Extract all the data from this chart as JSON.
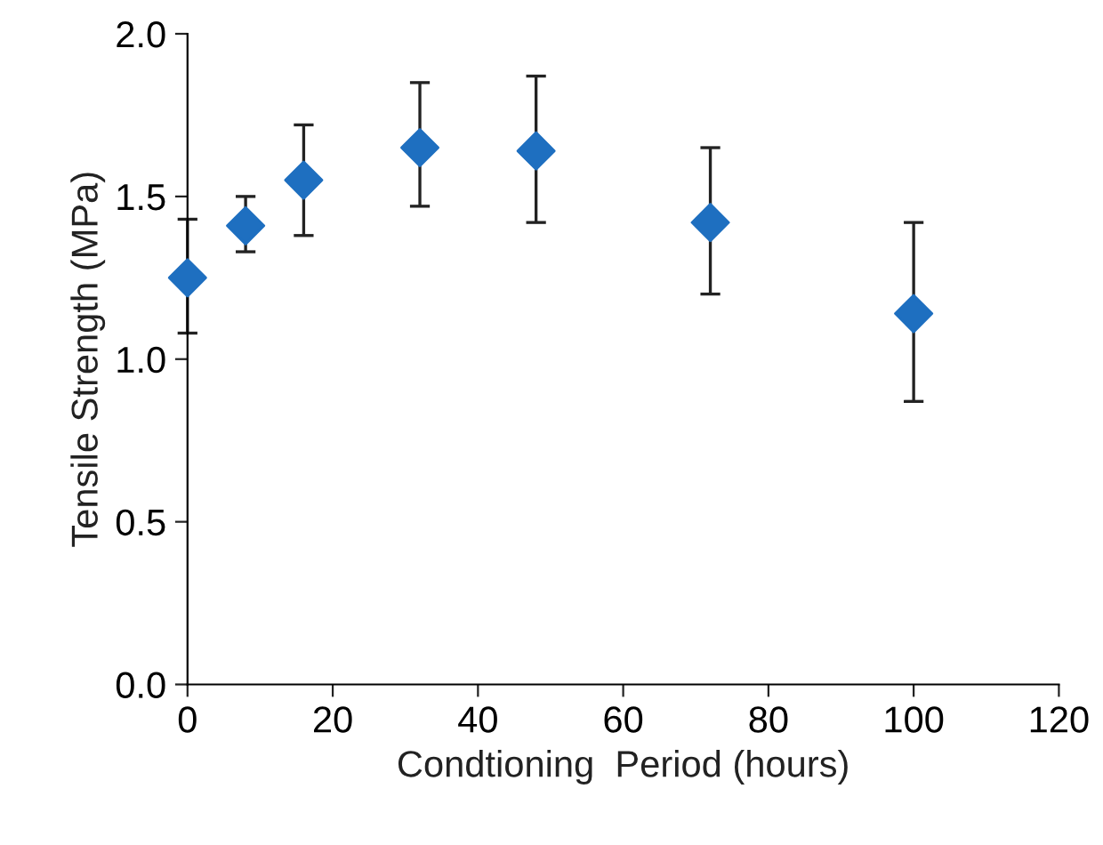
{
  "chart_data": {
    "type": "scatter",
    "xlabel": "Condtioning  Period (hours)",
    "ylabel": "Tensile Strength (MPa)",
    "x": [
      0,
      8,
      16,
      32,
      48,
      72,
      100
    ],
    "series": [
      {
        "color": "#1e6fc0",
        "values": [
          1.25,
          1.41,
          1.55,
          1.65,
          1.64,
          1.42,
          1.14
        ],
        "errors": [
          [
            1.08,
            1.43
          ],
          [
            1.33,
            1.5
          ],
          [
            1.38,
            1.72
          ],
          [
            1.47,
            1.85
          ],
          [
            1.42,
            1.87
          ],
          [
            1.2,
            1.65
          ],
          [
            0.87,
            1.42
          ]
        ]
      }
    ],
    "marker": "diamond",
    "grid": false,
    "legend": false,
    "xlim": [
      0,
      120
    ],
    "xticks": [
      0,
      20,
      40,
      60,
      80,
      100,
      120
    ],
    "ylim": [
      0,
      2
    ],
    "yticks": [
      {
        "value": 0,
        "label": "0.0"
      },
      {
        "value": 0.5,
        "label": "0.5"
      },
      {
        "value": 1,
        "label": "1.0"
      },
      {
        "value": 1.5,
        "label": "1.5"
      },
      {
        "value": 2,
        "label": "2.0"
      }
    ]
  }
}
